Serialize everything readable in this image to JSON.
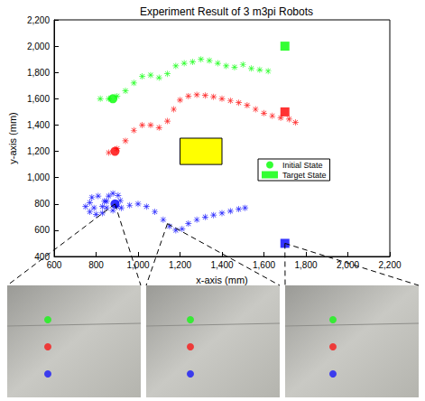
{
  "chart_data": {
    "type": "scatter",
    "title": "Experiment Result of 3 m3pi Robots",
    "x_label": "x-axis (mm)",
    "y_label": "y-axis (mm)",
    "xlim": [
      600,
      2200
    ],
    "xticks": [
      600,
      800,
      1000,
      1200,
      1400,
      1600,
      1800,
      2000,
      2200
    ],
    "ylim": [
      400,
      2200
    ],
    "yticks": [
      400,
      600,
      800,
      1000,
      1200,
      1400,
      1600,
      1800,
      2000,
      2200
    ],
    "grid": false,
    "legend": "right",
    "marker": "asterisk",
    "series": [
      {
        "color": "#00ff00",
        "values": [
          [
            820,
            1600
          ],
          [
            860,
            1600
          ],
          [
            900,
            1620
          ],
          [
            940,
            1660
          ],
          [
            980,
            1720
          ],
          [
            1020,
            1770
          ],
          [
            1060,
            1780
          ],
          [
            1100,
            1760
          ],
          [
            1140,
            1790
          ],
          [
            1180,
            1850
          ],
          [
            1220,
            1870
          ],
          [
            1260,
            1880
          ],
          [
            1300,
            1900
          ],
          [
            1340,
            1890
          ],
          [
            1380,
            1870
          ],
          [
            1420,
            1850
          ],
          [
            1460,
            1840
          ],
          [
            1500,
            1860
          ],
          [
            1540,
            1830
          ],
          [
            1580,
            1820
          ],
          [
            1620,
            1810
          ]
        ],
        "initial": [
          880,
          1600
        ],
        "target": [
          1700,
          2000
        ]
      },
      {
        "color": "#ff0000",
        "values": [
          [
            860,
            1190
          ],
          [
            900,
            1220
          ],
          [
            940,
            1280
          ],
          [
            980,
            1360
          ],
          [
            1020,
            1400
          ],
          [
            1060,
            1400
          ],
          [
            1100,
            1380
          ],
          [
            1140,
            1430
          ],
          [
            1170,
            1520
          ],
          [
            1200,
            1590
          ],
          [
            1240,
            1620
          ],
          [
            1280,
            1630
          ],
          [
            1320,
            1625
          ],
          [
            1360,
            1615
          ],
          [
            1400,
            1600
          ],
          [
            1440,
            1585
          ],
          [
            1480,
            1570
          ],
          [
            1520,
            1550
          ],
          [
            1560,
            1520
          ],
          [
            1600,
            1490
          ],
          [
            1640,
            1470
          ],
          [
            1680,
            1455
          ],
          [
            1720,
            1445
          ],
          [
            1750,
            1420
          ]
        ],
        "initial": [
          890,
          1200
        ],
        "target": [
          1700,
          1500
        ]
      },
      {
        "color": "#0000ff",
        "values": [
          [
            750,
            780
          ],
          [
            770,
            740
          ],
          [
            800,
            720
          ],
          [
            830,
            730
          ],
          [
            850,
            770
          ],
          [
            840,
            820
          ],
          [
            810,
            860
          ],
          [
            780,
            850
          ],
          [
            770,
            810
          ],
          [
            790,
            770
          ],
          [
            830,
            780
          ],
          [
            850,
            820
          ],
          [
            860,
            860
          ],
          [
            880,
            880
          ],
          [
            905,
            865
          ],
          [
            915,
            825
          ],
          [
            900,
            780
          ],
          [
            880,
            750
          ],
          [
            920,
            770
          ],
          [
            960,
            790
          ],
          [
            1000,
            800
          ],
          [
            1040,
            780
          ],
          [
            1080,
            740
          ],
          [
            1120,
            680
          ],
          [
            1150,
            630
          ],
          [
            1180,
            600
          ],
          [
            1210,
            610
          ],
          [
            1240,
            650
          ],
          [
            1280,
            680
          ],
          [
            1320,
            700
          ],
          [
            1360,
            715
          ],
          [
            1400,
            730
          ],
          [
            1440,
            745
          ],
          [
            1480,
            760
          ],
          [
            1510,
            770
          ]
        ],
        "initial": [
          890,
          800
        ],
        "target": [
          1700,
          500
        ]
      }
    ],
    "states": [
      {
        "name": "Initial State",
        "marker": "circle"
      },
      {
        "name": "Target State",
        "marker": "square"
      }
    ],
    "obstacle": {
      "x": [
        1200,
        1400
      ],
      "y": [
        1100,
        1300
      ],
      "color": "#ffff00"
    },
    "snapshots": [
      [
        890,
        800
      ],
      [
        1140,
        650
      ],
      [
        1700,
        500
      ]
    ]
  }
}
